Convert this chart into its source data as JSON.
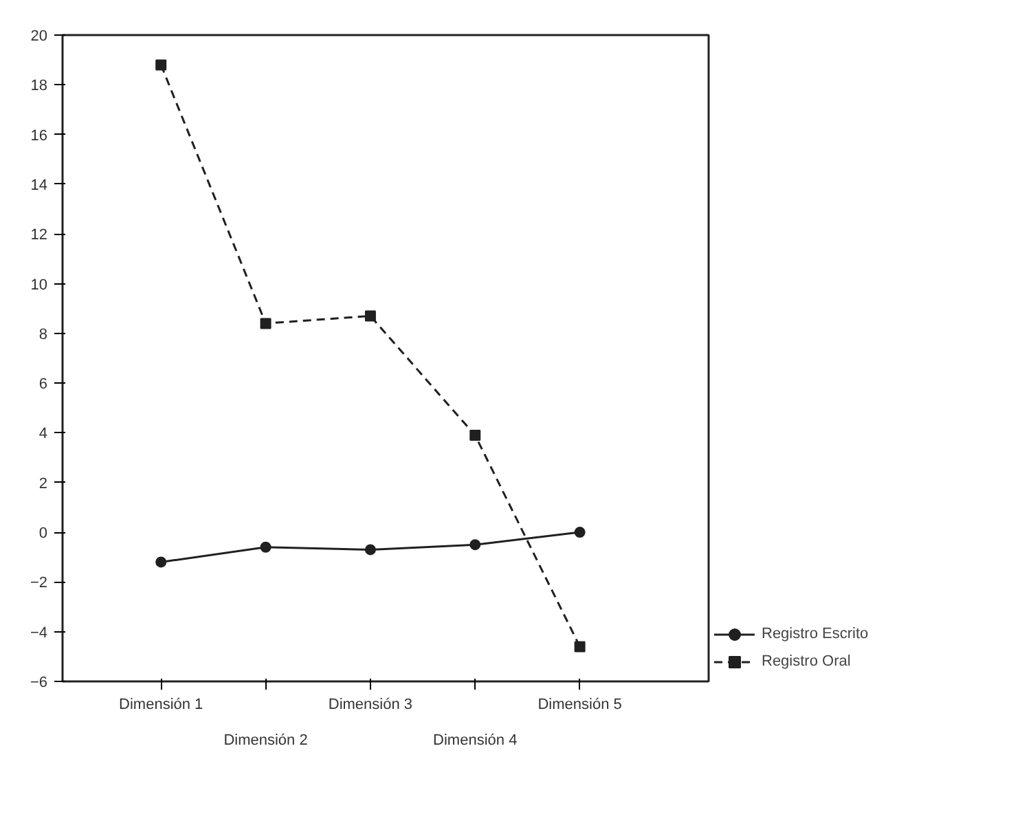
{
  "chart_data": {
    "type": "line",
    "categories": [
      "Dimensión 1",
      "Dimensión 2",
      "Dimensión 3",
      "Dimensión 4",
      "Dimensión 5"
    ],
    "series": [
      {
        "name": "Registro Escrito",
        "color": "#202020",
        "values": [
          -1.2,
          -0.6,
          -0.7,
          -0.5,
          0.0
        ],
        "marker": "circle",
        "line_style": "solid"
      },
      {
        "name": "Registro Oral",
        "color": "#202020",
        "values": [
          18.8,
          8.4,
          8.7,
          3.9,
          -4.6
        ],
        "marker": "square",
        "line_style": "dashed"
      }
    ],
    "ylim": [
      -6,
      20
    ],
    "yticks": [
      -6,
      -4,
      -2,
      0,
      2,
      4,
      6,
      8,
      10,
      12,
      14,
      16,
      18,
      20
    ],
    "grid": false,
    "legend": "bottom right"
  }
}
